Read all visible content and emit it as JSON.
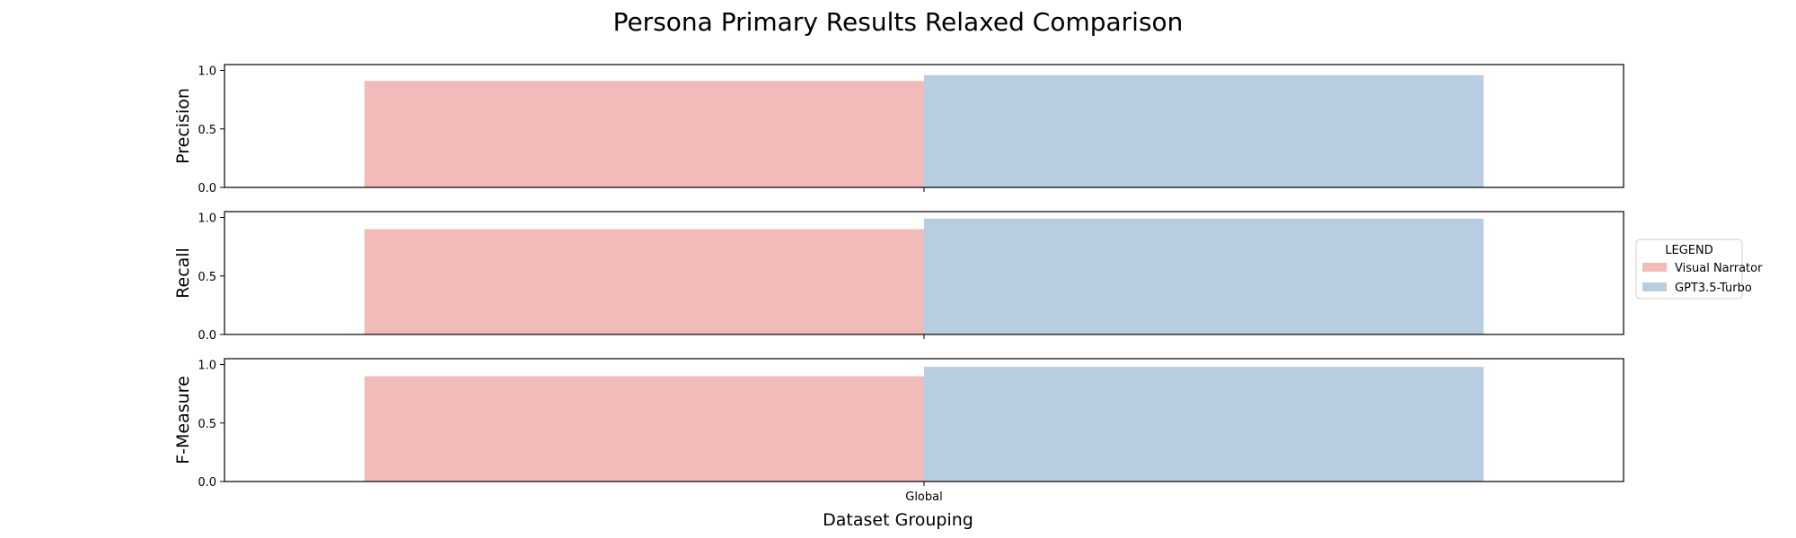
{
  "figure": {
    "title": "Persona Primary Results Relaxed Comparison",
    "xlabel": "Dataset Grouping"
  },
  "legend": {
    "title": "LEGEND",
    "placement": "right-center",
    "entries": [
      {
        "label": "Visual Narrator",
        "color": "#f0bbb9"
      },
      {
        "label": "GPT3.5-Turbo",
        "color": "#b9cde0"
      }
    ]
  },
  "chart_data": [
    {
      "type": "bar",
      "ylabel": "Precision",
      "categories": [
        "Global"
      ],
      "ylim": [
        0,
        1.05
      ],
      "yticks": [
        0.0,
        0.5,
        1.0
      ],
      "series": [
        {
          "name": "Visual Narrator",
          "values": [
            0.91
          ],
          "color": "#f0bbb9"
        },
        {
          "name": "GPT3.5-Turbo",
          "values": [
            0.96
          ],
          "color": "#b9cde0"
        }
      ]
    },
    {
      "type": "bar",
      "ylabel": "Recall",
      "categories": [
        "Global"
      ],
      "ylim": [
        0,
        1.05
      ],
      "yticks": [
        0.0,
        0.5,
        1.0
      ],
      "series": [
        {
          "name": "Visual Narrator",
          "values": [
            0.9
          ],
          "color": "#f0bbb9"
        },
        {
          "name": "GPT3.5-Turbo",
          "values": [
            0.99
          ],
          "color": "#b9cde0"
        }
      ]
    },
    {
      "type": "bar",
      "ylabel": "F-Measure",
      "categories": [
        "Global"
      ],
      "ylim": [
        0,
        1.05
      ],
      "yticks": [
        0.0,
        0.5,
        1.0
      ],
      "series": [
        {
          "name": "Visual Narrator",
          "values": [
            0.9
          ],
          "color": "#f0bbb9"
        },
        {
          "name": "GPT3.5-Turbo",
          "values": [
            0.98
          ],
          "color": "#b9cde0"
        }
      ]
    }
  ]
}
